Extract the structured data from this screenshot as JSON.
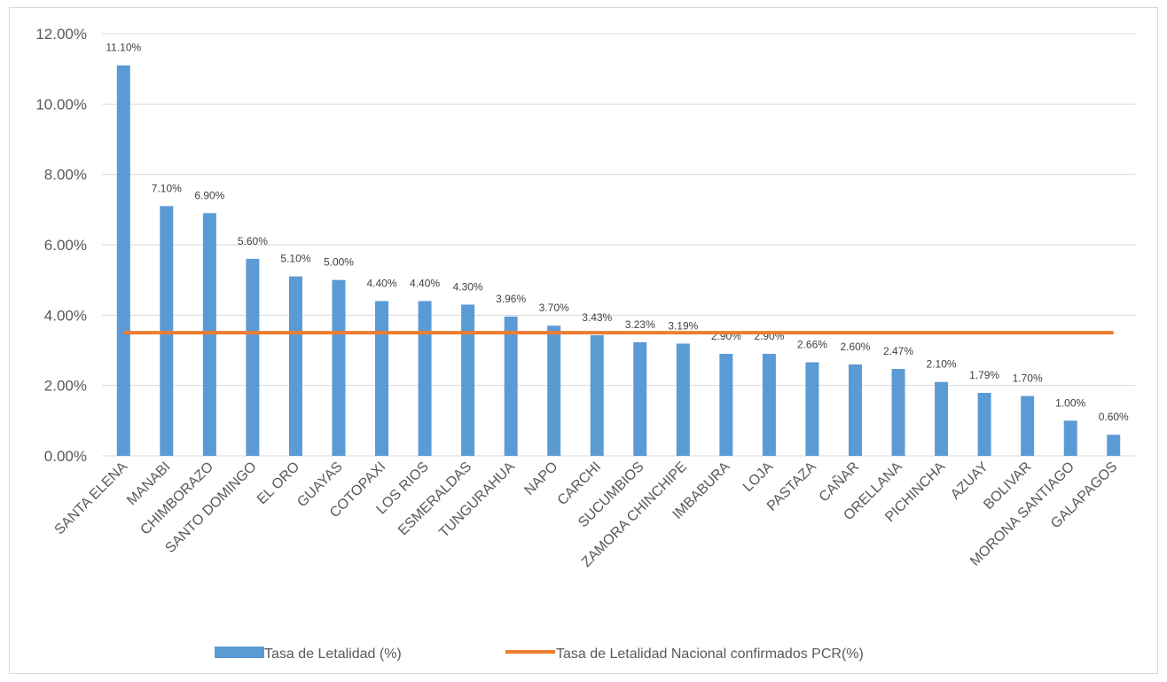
{
  "chart_data": {
    "type": "bar",
    "categories": [
      "SANTA ELENA",
      "MANABI",
      "CHIMBORAZO",
      "SANTO DOMINGO",
      "EL ORO",
      "GUAYAS",
      "COTOPAXI",
      "LOS RIOS",
      "ESMERALDAS",
      "TUNGURAHUA",
      "NAPO",
      "CARCHI",
      "SUCUMBIOS",
      "ZAMORA CHINCHIPE",
      "IMBABURA",
      "LOJA",
      "PASTAZA",
      "CAÑAR",
      "ORELLANA",
      "PICHINCHA",
      "AZUAY",
      "BOLIVAR",
      "MORONA SANTIAGO",
      "GALAPAGOS"
    ],
    "series": [
      {
        "name": "Tasa de Letalidad  (%)",
        "type": "bar",
        "color": "#5b9bd5",
        "values": [
          11.1,
          7.1,
          6.9,
          5.6,
          5.1,
          5.0,
          4.4,
          4.4,
          4.3,
          3.96,
          3.7,
          3.43,
          3.23,
          3.19,
          2.9,
          2.9,
          2.66,
          2.6,
          2.47,
          2.1,
          1.79,
          1.7,
          1.0,
          0.6
        ],
        "labels": [
          "11.10%",
          "7.10%",
          "6.90%",
          "5.60%",
          "5.10%",
          "5.00%",
          "4.40%",
          "4.40%",
          "4.30%",
          "3.96%",
          "3.70%",
          "3.43%",
          "3.23%",
          "3.19%",
          "2.90%",
          "2.90%",
          "2.66%",
          "2.60%",
          "2.47%",
          "2.10%",
          "1.79%",
          "1.70%",
          "1.00%",
          "0.60%"
        ]
      },
      {
        "name": "Tasa de Letalidad Nacional confirmados PCR(%)",
        "type": "line",
        "color": "#ed7d31",
        "value": 3.5
      }
    ],
    "ylim": [
      0,
      12
    ],
    "yticks": [
      "0.00%",
      "2.00%",
      "4.00%",
      "6.00%",
      "8.00%",
      "10.00%",
      "12.00%"
    ],
    "ytick_values": [
      0,
      2,
      4,
      6,
      8,
      10,
      12
    ],
    "grid": true,
    "legend_position": "bottom"
  }
}
